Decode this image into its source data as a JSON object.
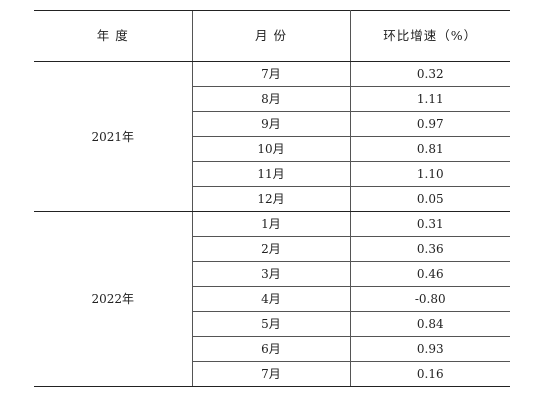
{
  "headers": {
    "year": "年 度",
    "month": "月 份",
    "mom": "环比增速（%）"
  },
  "groups": [
    {
      "year": "2021年",
      "rows": [
        {
          "month": "7月",
          "value": "0.32"
        },
        {
          "month": "8月",
          "value": "1.11"
        },
        {
          "month": "9月",
          "value": "0.97"
        },
        {
          "month": "10月",
          "value": "0.81"
        },
        {
          "month": "11月",
          "value": "1.10"
        },
        {
          "month": "12月",
          "value": "0.05"
        }
      ]
    },
    {
      "year": "2022年",
      "rows": [
        {
          "month": "1月",
          "value": "0.31"
        },
        {
          "month": "2月",
          "value": "0.36"
        },
        {
          "month": "3月",
          "value": "0.46"
        },
        {
          "month": "4月",
          "value": "-0.80"
        },
        {
          "month": "5月",
          "value": "0.84"
        },
        {
          "month": "6月",
          "value": "0.93"
        },
        {
          "month": "7月",
          "value": "0.16"
        }
      ]
    }
  ]
}
